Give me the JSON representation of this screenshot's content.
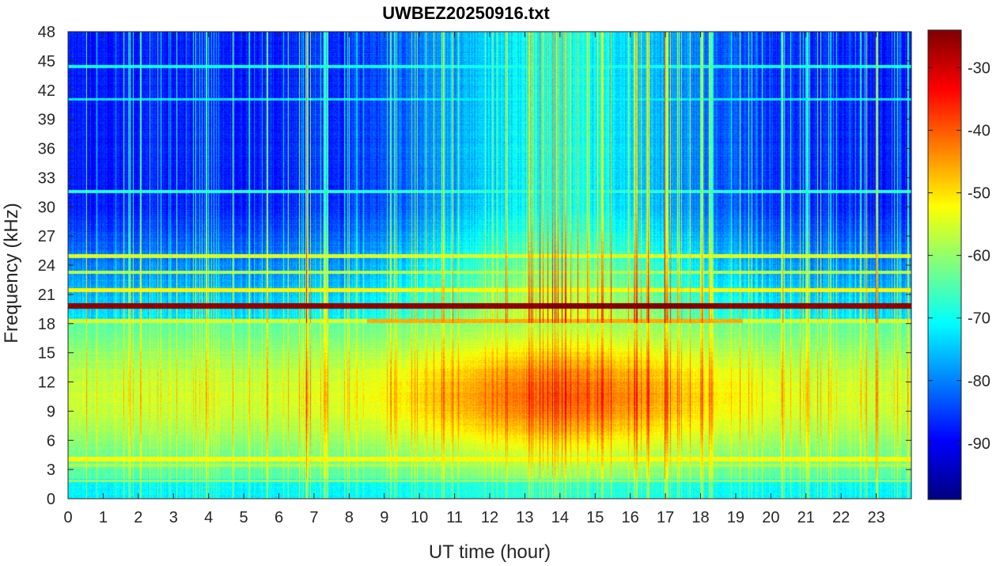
{
  "chart_data": {
    "type": "heatmap",
    "title": "UWBEZ20250916.txt",
    "xlabel": "UT time (hour)",
    "ylabel": "Frequency (kHz)",
    "xlim": [
      0,
      24
    ],
    "ylim": [
      0,
      48
    ],
    "x_ticks": [
      0,
      1,
      2,
      3,
      4,
      5,
      6,
      7,
      8,
      9,
      10,
      11,
      12,
      13,
      14,
      15,
      16,
      17,
      18,
      19,
      20,
      21,
      22,
      23
    ],
    "x_tick_labels": [
      "0",
      "1",
      "2",
      "3",
      "4",
      "5",
      "6",
      "7",
      "8",
      "9",
      "10",
      "11",
      "12",
      "13",
      "14",
      "15",
      "16",
      "17",
      "18",
      "19",
      "20",
      "21",
      "22",
      "23"
    ],
    "y_ticks": [
      0,
      3,
      6,
      9,
      12,
      15,
      18,
      21,
      24,
      27,
      30,
      33,
      36,
      39,
      42,
      45,
      48
    ],
    "y_tick_labels": [
      "0",
      "3",
      "6",
      "9",
      "12",
      "15",
      "18",
      "21",
      "24",
      "27",
      "30",
      "33",
      "36",
      "39",
      "42",
      "45",
      "48"
    ],
    "colorbar": {
      "colormap": "jet",
      "clim": [
        -99,
        -24
      ],
      "ticks": [
        -90,
        -80,
        -70,
        -60,
        -50,
        -40,
        -30
      ],
      "tick_labels": [
        "-90",
        "-80",
        "-70",
        "-60",
        "-50",
        "-40",
        "-30"
      ]
    },
    "features": {
      "narrowband_lines_khz": [
        19.8,
        18.2,
        21.4,
        24.9,
        4.0,
        3.5,
        1.8,
        31.5,
        44.4
      ],
      "strongest_line_khz": 19.8,
      "strongest_line_db": -25,
      "daytime_noise_hours": [
        9.5,
        18.5
      ],
      "daytime_noise_band_khz": [
        6,
        16
      ],
      "daytime_noise_db": -47,
      "night_high_freq_db": -88
    }
  }
}
